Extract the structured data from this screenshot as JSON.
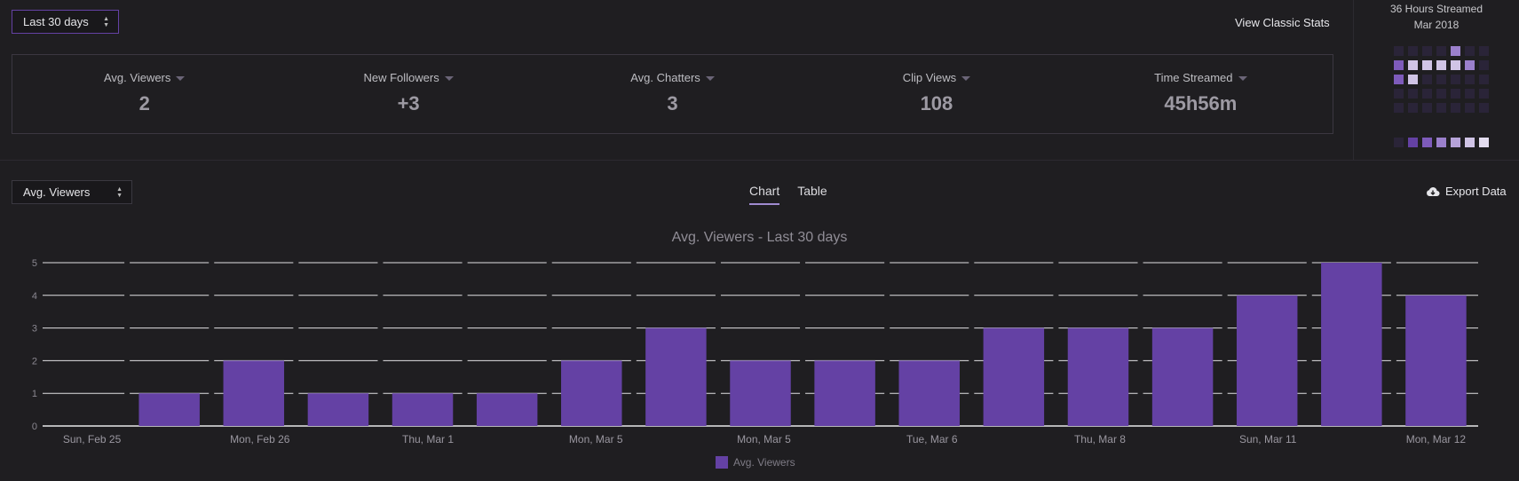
{
  "controls": {
    "range_select": "Last 30 days",
    "view_classic": "View Classic Stats",
    "metric_select": "Avg. Viewers",
    "tabs": [
      "Chart",
      "Table"
    ],
    "export": "Export Data"
  },
  "stats": [
    {
      "label": "Avg. Viewers",
      "value": "2"
    },
    {
      "label": "New Followers",
      "value": "+3"
    },
    {
      "label": "Avg. Chatters",
      "value": "3"
    },
    {
      "label": "Clip Views",
      "value": "108"
    },
    {
      "label": "Time Streamed",
      "value": "45h56m"
    }
  ],
  "calendar": {
    "title": "36 Hours Streamed",
    "month": "Mar 2018",
    "levels": [
      0,
      0,
      0,
      0,
      3,
      0,
      0,
      2,
      5,
      5,
      5,
      5,
      3,
      0,
      2,
      5,
      0,
      0,
      0,
      0,
      0,
      0,
      0,
      0,
      0,
      0,
      0,
      0,
      0,
      0,
      0,
      0,
      0,
      0,
      0
    ],
    "scale": [
      0,
      1,
      2,
      3,
      4,
      5,
      6
    ],
    "colors": [
      "#2a2438",
      "#6441a4",
      "#7e5bbb",
      "#9b80cc",
      "#b6a3d9",
      "#d0c4e6",
      "#e3dcef"
    ]
  },
  "chart_data": {
    "type": "bar",
    "title": "Avg. Viewers - Last 30 days",
    "series": [
      {
        "name": "Avg. Viewers",
        "values": [
          0,
          1,
          2,
          1,
          1,
          1,
          2,
          3,
          2,
          2,
          2,
          3,
          3,
          3,
          4,
          5,
          4
        ]
      }
    ],
    "x_tick_labels": [
      "Sun, Feb 25",
      "Mon, Feb 26",
      "Thu, Mar 1",
      "Mon, Mar 5",
      "Mon, Mar 5",
      "Tue, Mar 6",
      "Thu, Mar 8",
      "Sun, Mar 11",
      "Mon, Mar 12"
    ],
    "y_ticks": [
      0,
      1,
      2,
      3,
      4,
      5
    ],
    "ylim": [
      0,
      5
    ],
    "grid": true,
    "bar_color": "#6441a4"
  }
}
